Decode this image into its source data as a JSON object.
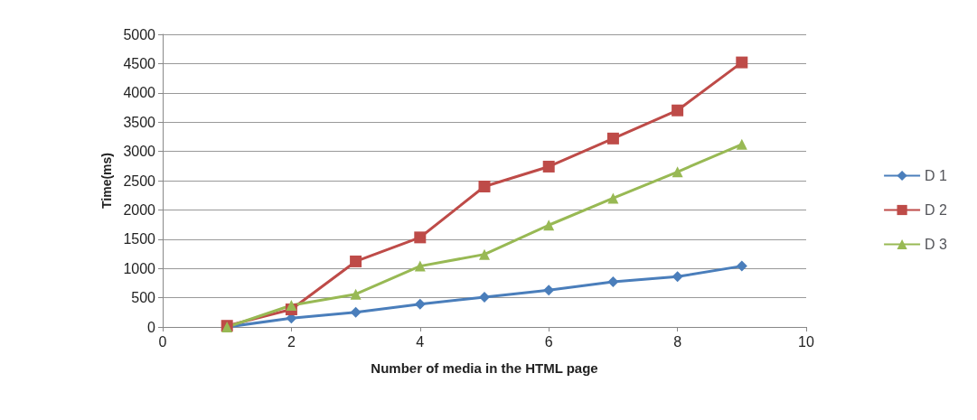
{
  "chart_data": {
    "type": "line",
    "xlabel": "Number of media in the HTML page",
    "ylabel": "Time(ms)",
    "x": [
      1,
      2,
      3,
      4,
      5,
      6,
      7,
      8,
      9
    ],
    "series": [
      {
        "name": "D 1",
        "color": "#4a7ebb",
        "marker": "diamond",
        "values": [
          0,
          150,
          250,
          390,
          510,
          630,
          770,
          860,
          1040
        ]
      },
      {
        "name": "D 2",
        "color": "#be4b48",
        "marker": "square",
        "values": [
          20,
          300,
          1120,
          1530,
          2400,
          2740,
          3220,
          3700,
          4520
        ]
      },
      {
        "name": "D 3",
        "color": "#98b954",
        "marker": "triangle",
        "values": [
          0,
          370,
          560,
          1040,
          1240,
          1740,
          2200,
          2650,
          3120
        ]
      }
    ],
    "xlim": [
      0,
      10
    ],
    "xticks": [
      0,
      2,
      4,
      6,
      8,
      10
    ],
    "ylim": [
      0,
      5000
    ],
    "yticks": [
      0,
      500,
      1000,
      1500,
      2000,
      2500,
      3000,
      3500,
      4000,
      4500,
      5000
    ],
    "grid": "y",
    "legend": "right"
  }
}
